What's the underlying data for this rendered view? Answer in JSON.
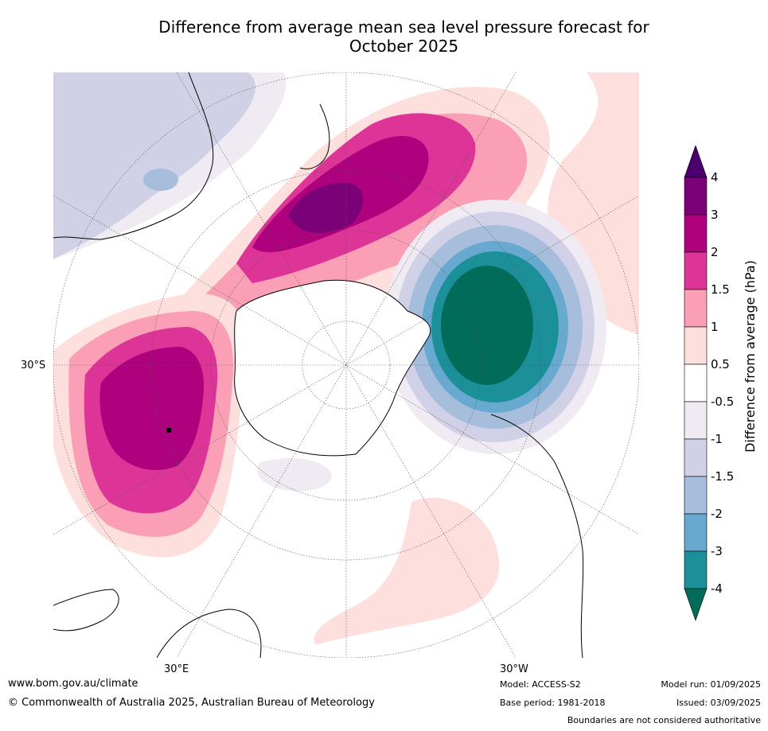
{
  "title_line1": "Difference from average mean sea level pressure forecast for",
  "title_line2": "October 2025",
  "lat_labels": [
    "30°S"
  ],
  "lon_labels": [
    "30°E",
    "30°W"
  ],
  "colorbar": {
    "label": "Difference from average (hPa)",
    "tick_labels": [
      "4",
      "3",
      "2",
      "1.5",
      "1",
      "0.5",
      "-0.5",
      "-1",
      "-1.5",
      "-2",
      "-3",
      "-4"
    ],
    "bins": [
      {
        "range": "> 4",
        "color": "#4b006e"
      },
      {
        "range": "3 to 4",
        "color": "#7a0177"
      },
      {
        "range": "2 to 3",
        "color": "#ae017e"
      },
      {
        "range": "1.5 to 2",
        "color": "#dd3497"
      },
      {
        "range": "1 to 1.5",
        "color": "#fa9fb5"
      },
      {
        "range": "0.5 to 1",
        "color": "#fde0dd"
      },
      {
        "range": "-0.5 to 0.5",
        "color": "#ffffff"
      },
      {
        "range": "-1 to -0.5",
        "color": "#f0ebf3"
      },
      {
        "range": "-1.5 to -1",
        "color": "#d0d1e6"
      },
      {
        "range": "-2 to -1.5",
        "color": "#a6bddb"
      },
      {
        "range": "-3 to -2",
        "color": "#67a9cf"
      },
      {
        "range": "-4 to -3",
        "color": "#1c9099"
      },
      {
        "range": "< -4",
        "color": "#016c59"
      }
    ]
  },
  "footer": {
    "website": "www.bom.gov.au/climate",
    "copyright": "© Commonwealth of Australia 2025, Australian Bureau of Meteorology",
    "model": "Model: ACCESS-S2",
    "base_period": "Base period: 1981-2018",
    "model_run": "Model run: 01/09/2025",
    "issued": "Issued: 03/09/2025",
    "disclaimer": "Boundaries are not considered authoritative"
  }
}
